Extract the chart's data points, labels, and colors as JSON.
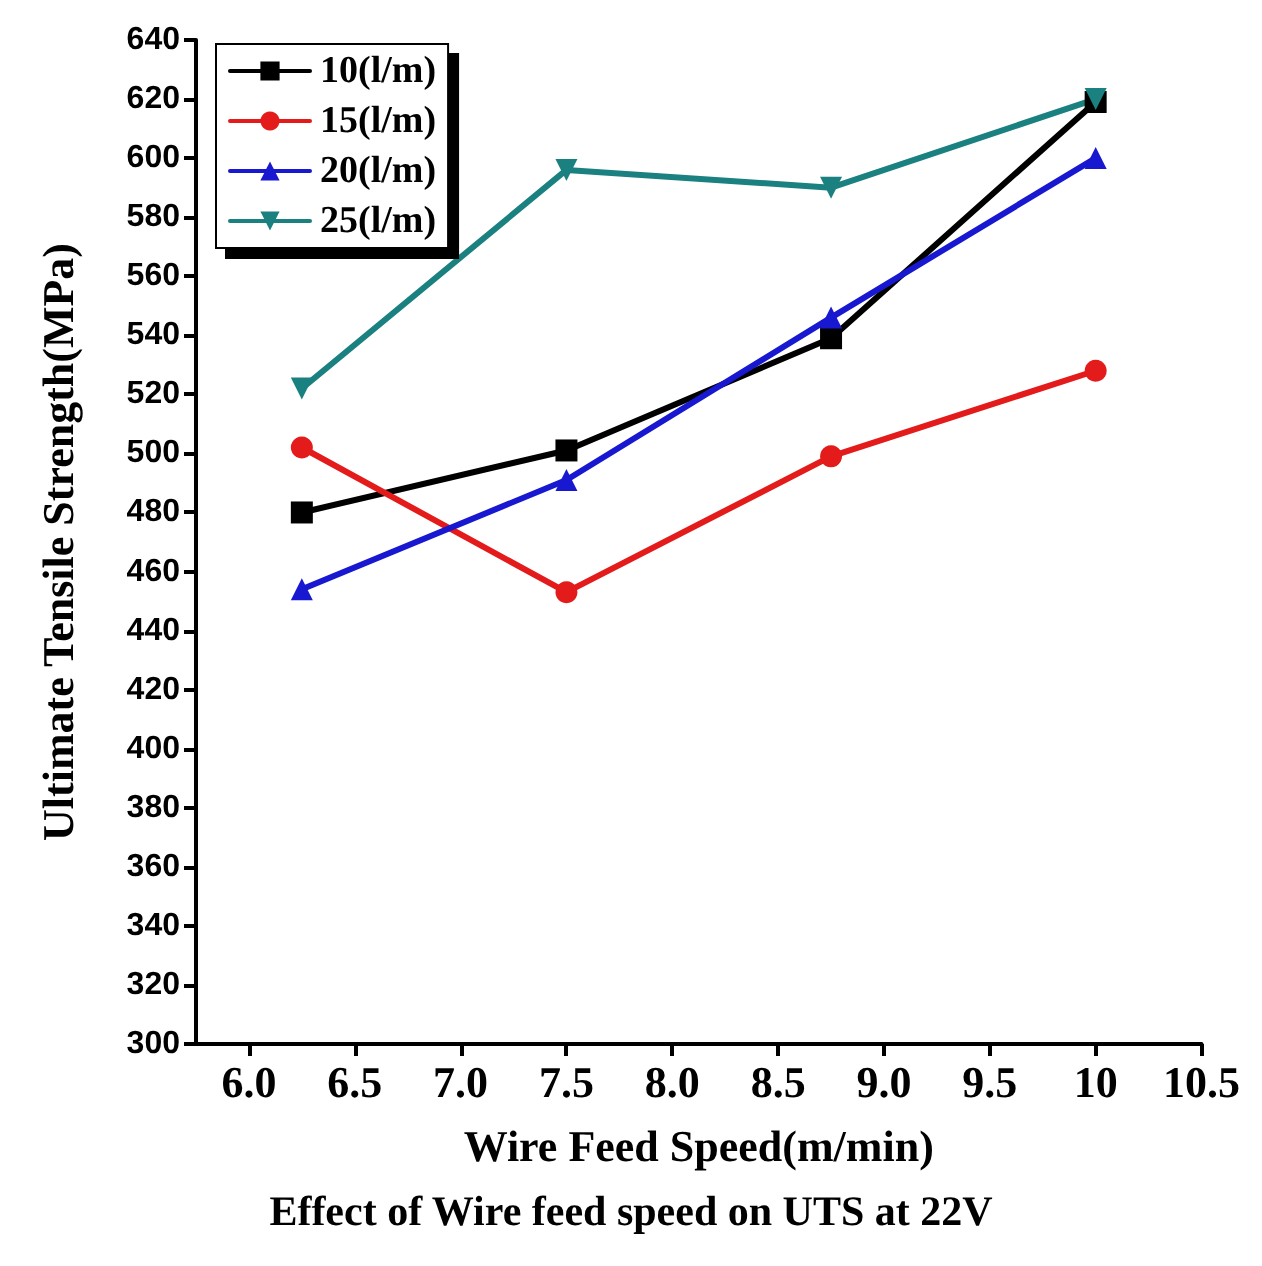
{
  "chart_data": {
    "type": "line",
    "title": "Effect of Wire feed speed on UTS at 22V",
    "xlabel": "Wire Feed Speed(m/min)",
    "ylabel": "Ultimate Tensile Strength(MPa)",
    "x": [
      6.25,
      7.5,
      8.75,
      10
    ],
    "series": [
      {
        "name": "10(l/m)",
        "color": "#000000",
        "marker": "square",
        "values": [
          480,
          501,
          539,
          619
        ]
      },
      {
        "name": "15(l/m)",
        "color": "#e31b1b",
        "marker": "circle",
        "values": [
          502,
          453,
          499,
          528
        ]
      },
      {
        "name": "20(l/m)",
        "color": "#1818d0",
        "marker": "triangle",
        "values": [
          454,
          491,
          546,
          600
        ]
      },
      {
        "name": "25(l/m)",
        "color": "#1a8080",
        "marker": "triangle-down",
        "values": [
          522,
          596,
          590,
          620
        ]
      }
    ],
    "xlim": [
      5.75,
      10.5
    ],
    "xticks": [
      {
        "value": 6,
        "label": "6.0"
      },
      6.5,
      {
        "value": 7,
        "label": "7.0"
      },
      7.5,
      {
        "value": 8,
        "label": "8.0"
      },
      8.5,
      {
        "value": 9,
        "label": "9.0"
      },
      9.5,
      10,
      10.5
    ],
    "ylim": [
      300,
      640
    ],
    "yticks": [
      300,
      320,
      340,
      360,
      380,
      400,
      420,
      440,
      460,
      480,
      500,
      520,
      540,
      560,
      580,
      600,
      620,
      640
    ],
    "grid": false,
    "legend": "top left"
  }
}
